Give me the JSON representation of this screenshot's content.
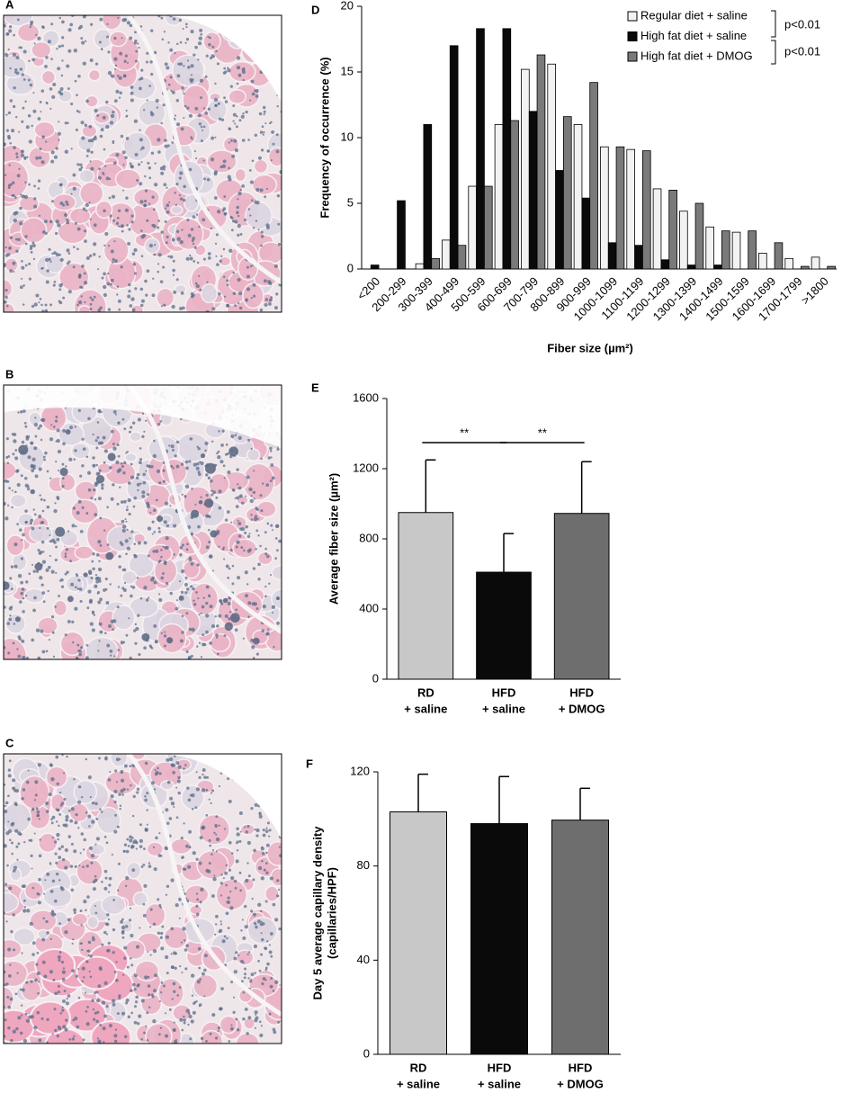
{
  "image_panels": [
    "A",
    "B",
    "C"
  ],
  "chart_data": [
    {
      "type": "bar",
      "panel": "D",
      "xlabel": "Fiber size (µm²)",
      "ylabel": "Frequency of occurrence (%)",
      "categories": [
        "<200",
        "200-299",
        "300-399",
        "400-499",
        "500-599",
        "600-699",
        "700-799",
        "800-899",
        "900-999",
        "1000-1099",
        "1100-1199",
        "1200-1299",
        "1300-1399",
        "1400-1499",
        "1500-1599",
        "1600-1699",
        "1700-1799",
        ">1800"
      ],
      "series": [
        {
          "name": "Regular diet + saline",
          "color": "#f2f2f2",
          "values": [
            0,
            0,
            0.4,
            2.2,
            6.3,
            11,
            15.2,
            15.6,
            11,
            9.3,
            9.1,
            6.1,
            4.4,
            3.2,
            2.8,
            1.2,
            0.8,
            0.9
          ]
        },
        {
          "name": "High fat diet + saline",
          "color": "#0a0a0a",
          "values": [
            0.3,
            5.2,
            11,
            17,
            18.3,
            18.3,
            12,
            7.5,
            5.4,
            2,
            1.8,
            0.7,
            0.3,
            0.3,
            0,
            0,
            0,
            0
          ]
        },
        {
          "name": "High fat diet + DMOG",
          "color": "#7a7a7a",
          "values": [
            0,
            0,
            0.8,
            1.8,
            6.3,
            11.3,
            16.3,
            11.6,
            14.2,
            9.3,
            9,
            6,
            5,
            2.9,
            2.9,
            2,
            0.2,
            0.2
          ]
        }
      ],
      "annotations": [
        "p<0.01",
        "p<0.01"
      ],
      "ylim": [
        0,
        20
      ],
      "yticks": [
        0,
        5,
        10,
        15,
        20
      ],
      "legend": "upper right"
    },
    {
      "type": "bar",
      "panel": "E",
      "ylabel": "Average fiber size (µm²)",
      "categories": [
        [
          "RD",
          "+ saline"
        ],
        [
          "HFD",
          "+ saline"
        ],
        [
          "HFD",
          "+ DMOG"
        ]
      ],
      "values": [
        950,
        610,
        945
      ],
      "errors": [
        300,
        220,
        295
      ],
      "colors": [
        "#c8c8c8",
        "#0a0a0a",
        "#6e6e6e"
      ],
      "annotations": [
        "**",
        "**"
      ],
      "ylim": [
        0,
        1600
      ],
      "yticks": [
        0,
        400,
        800,
        1200,
        1600
      ]
    },
    {
      "type": "bar",
      "panel": "F",
      "ylabel": [
        "Day 5 average capillary density",
        "(capillaries/HPF)"
      ],
      "categories": [
        [
          "RD",
          "+ saline"
        ],
        [
          "HFD",
          "+ saline"
        ],
        [
          "HFD",
          "+ DMOG"
        ]
      ],
      "values": [
        103,
        98,
        99.5
      ],
      "errors": [
        16,
        20,
        13.5
      ],
      "colors": [
        "#c8c8c8",
        "#0a0a0a",
        "#6e6e6e"
      ],
      "ylim": [
        0,
        120
      ],
      "yticks": [
        0,
        40,
        80,
        120
      ]
    }
  ]
}
